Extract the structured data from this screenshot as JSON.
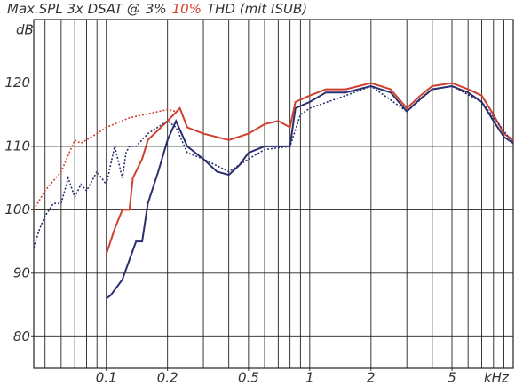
{
  "chart_data": {
    "type": "line",
    "title_prefix": "Max.SPL 3x DSAT @",
    "title_suffix": "THD (mit ISUB)",
    "y_label": "dB",
    "x_label": "kHz",
    "log_x": true,
    "grid": true,
    "xlim": [
      0.044,
      10
    ],
    "ylim": [
      75,
      130
    ],
    "xticks": [
      0.1,
      0.2,
      0.5,
      1,
      2,
      5
    ],
    "x_grid": [
      0.05,
      0.06,
      0.07,
      0.08,
      0.09,
      0.1,
      0.2,
      0.3,
      0.4,
      0.5,
      0.6,
      0.7,
      0.8,
      0.9,
      1,
      2,
      3,
      4,
      5,
      6,
      7,
      8,
      9
    ],
    "yticks": [
      80,
      90,
      100,
      110,
      120
    ],
    "y_grid": [
      80,
      90,
      100,
      110,
      120,
      130
    ],
    "series": [
      {
        "name": "3%",
        "title_color": "#333333",
        "color": "#2a2f6e",
        "dash": false,
        "x": [
          0.1,
          0.105,
          0.12,
          0.14,
          0.15,
          0.16,
          0.18,
          0.2,
          0.22,
          0.25,
          0.3,
          0.35,
          0.4,
          0.45,
          0.5,
          0.6,
          0.7,
          0.8,
          0.85,
          1,
          1.2,
          1.5,
          2,
          2.5,
          3,
          3.5,
          4,
          5,
          6,
          7,
          8,
          9,
          10
        ],
        "values": [
          86,
          86.5,
          89,
          95,
          95,
          101,
          106,
          111,
          114,
          110,
          108,
          106,
          105.5,
          107,
          109,
          110,
          110,
          110,
          116,
          117,
          118.5,
          118.5,
          119.5,
          118.5,
          115.5,
          117.5,
          119,
          119.5,
          118.5,
          117,
          114,
          111.5,
          110.5
        ]
      },
      {
        "name": "10%",
        "title_color": "#d0402f",
        "color": "#d0402f",
        "dash": false,
        "x": [
          0.1,
          0.11,
          0.12,
          0.13,
          0.135,
          0.15,
          0.16,
          0.2,
          0.23,
          0.25,
          0.3,
          0.4,
          0.5,
          0.6,
          0.7,
          0.8,
          0.85,
          1,
          1.2,
          1.5,
          2,
          2.5,
          3,
          3.5,
          4,
          5,
          6,
          7,
          8,
          9,
          10
        ],
        "values": [
          93,
          97,
          100,
          100,
          105,
          108,
          111,
          114,
          116,
          113,
          112,
          111,
          112,
          113.5,
          114,
          113,
          117,
          118,
          119,
          119,
          120,
          119,
          116,
          118,
          119.5,
          120,
          119,
          118,
          115,
          112,
          111
        ]
      },
      {
        "color": "#2a2f6e",
        "dash": true,
        "x": [
          0.044,
          0.047,
          0.05,
          0.055,
          0.06,
          0.065,
          0.07,
          0.075,
          0.08,
          0.09,
          0.1,
          0.11,
          0.12,
          0.125,
          0.13,
          0.14,
          0.16,
          0.2,
          0.22,
          0.25,
          0.3,
          0.4,
          0.5,
          0.6,
          0.8,
          0.9,
          1,
          1.5,
          2,
          3,
          4,
          5,
          7,
          10
        ],
        "values": [
          94,
          97,
          99,
          101,
          101,
          105,
          102,
          104,
          103,
          106,
          104,
          110,
          105,
          109,
          110,
          110,
          112,
          114,
          113,
          109,
          108,
          106,
          108,
          109.5,
          110,
          115,
          116,
          118,
          119.5,
          115.5,
          119,
          119.5,
          117,
          110.5
        ]
      },
      {
        "color": "#d0402f",
        "dash": true,
        "x": [
          0.044,
          0.05,
          0.06,
          0.07,
          0.075,
          0.09,
          0.1,
          0.13,
          0.2,
          0.22
        ],
        "values": [
          100,
          103,
          106,
          111,
          110.5,
          112,
          113,
          114.5,
          115.8,
          115.5
        ]
      }
    ]
  }
}
